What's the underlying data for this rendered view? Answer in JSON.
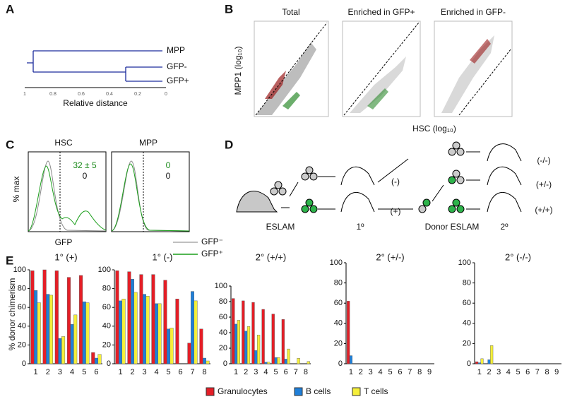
{
  "panel_labels": [
    "A",
    "B",
    "C",
    "D",
    "E"
  ],
  "dendrogram": {
    "leaves": [
      "MPP",
      "GFP-",
      "GFP+"
    ],
    "ticks": [
      1,
      0.8,
      0.6,
      0.4,
      0.2,
      0
    ],
    "axis_label": "Relative distance"
  },
  "scatter": {
    "titles": [
      "Total",
      "Enriched in GFP+",
      "Enriched in GFP-"
    ],
    "y_label": "MPP1 (log₁₀)",
    "x_label": "HSC (log₁₀)"
  },
  "histogram": {
    "titles": [
      "HSC",
      "MPP"
    ],
    "stats": [
      [
        "32 ± 5",
        "0"
      ],
      [
        "0",
        "0"
      ]
    ],
    "y_label": "% max",
    "x_label": "GFP",
    "legend": [
      "GFP⁻",
      "GFP⁺"
    ]
  },
  "scheme": {
    "labels": [
      "ESLAM",
      "1º",
      "Donor ESLAM",
      "2º"
    ],
    "first_outcomes": [
      "(-)",
      "(+)"
    ],
    "second_outcomes": [
      "(-/-)",
      "(+/-)",
      "(+/+)"
    ]
  },
  "y_label": "% donor chimerism",
  "legend": [
    {
      "name": "Granulocytes",
      "color": "#e41e26"
    },
    {
      "name": "B cells",
      "color": "#1f7fd9"
    },
    {
      "name": "T cells",
      "color": "#f5ef3a"
    }
  ],
  "chart_data": [
    {
      "type": "bar",
      "title": "1° (+)",
      "categories": [
        "1",
        "2",
        "3",
        "4",
        "5",
        "6"
      ],
      "ylim": [
        0,
        100
      ],
      "yticks": [
        0,
        20,
        40,
        60,
        80,
        100
      ],
      "series": [
        {
          "values": [
            99,
            100,
            99,
            92,
            94,
            12
          ]
        },
        {
          "values": [
            78,
            74,
            27,
            42,
            66,
            6
          ]
        },
        {
          "values": [
            65,
            73,
            29,
            52,
            65,
            10
          ]
        }
      ]
    },
    {
      "type": "bar",
      "title": "1° (-)",
      "categories": [
        "1",
        "2",
        "3",
        "4",
        "5",
        "6",
        "7",
        "8"
      ],
      "ylim": [
        0,
        100
      ],
      "yticks": [
        0,
        20,
        40,
        60,
        80,
        100
      ],
      "series": [
        {
          "values": [
            99,
            98,
            95,
            95,
            89,
            69,
            22,
            37
          ]
        },
        {
          "values": [
            67,
            90,
            74,
            64,
            37,
            0,
            77,
            6
          ]
        },
        {
          "values": [
            69,
            76,
            72,
            64,
            38,
            0,
            67,
            3
          ]
        }
      ]
    },
    {
      "type": "bar",
      "title": "2° (+/+)",
      "categories": [
        "1",
        "2",
        "3",
        "4",
        "5",
        "6",
        "7",
        "8"
      ],
      "ylim": [
        0,
        100
      ],
      "yticks": [
        0,
        20,
        40,
        60,
        80,
        100
      ],
      "series": [
        {
          "values": [
            84,
            81,
            79,
            70,
            64,
            57,
            0,
            0
          ]
        },
        {
          "values": [
            51,
            42,
            17,
            2,
            8,
            6,
            0,
            0
          ]
        },
        {
          "values": [
            56,
            48,
            37,
            2,
            8,
            19,
            7,
            3
          ]
        }
      ]
    },
    {
      "type": "bar",
      "title": "2° (+/-)",
      "categories": [
        "1",
        "2",
        "3",
        "4",
        "5",
        "6",
        "7",
        "8",
        "9"
      ],
      "ylim": [
        0,
        100
      ],
      "yticks": [
        0,
        20,
        40,
        60,
        80,
        100
      ],
      "series": [
        {
          "values": [
            62,
            0,
            0,
            0,
            0,
            0,
            0,
            0,
            0
          ]
        },
        {
          "values": [
            8,
            0,
            0,
            0,
            0,
            0,
            0,
            0,
            0
          ]
        },
        {
          "values": [
            0,
            0,
            0,
            0,
            0,
            0,
            0,
            0,
            0
          ]
        }
      ]
    },
    {
      "type": "bar",
      "title": "2° (-/-)",
      "categories": [
        "1",
        "2",
        "3",
        "4",
        "5",
        "6",
        "7",
        "8",
        "9"
      ],
      "ylim": [
        0,
        100
      ],
      "yticks": [
        0,
        20,
        40,
        60,
        80,
        100
      ],
      "series": [
        {
          "values": [
            2,
            0,
            0,
            0,
            0,
            0,
            0,
            0,
            0
          ]
        },
        {
          "values": [
            1,
            4,
            0,
            0,
            0,
            0,
            0,
            0,
            0
          ]
        },
        {
          "values": [
            5,
            18,
            0,
            0,
            0,
            0,
            0,
            0,
            0
          ]
        }
      ]
    }
  ]
}
